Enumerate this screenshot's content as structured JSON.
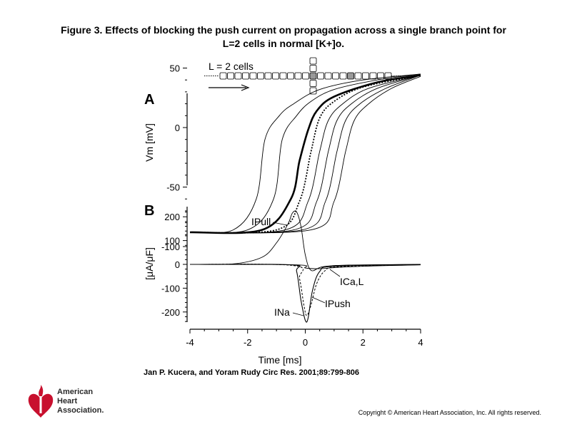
{
  "title": {
    "line1": "Figure 3. Effects of blocking the push current on propagation across a single branch point for",
    "line2": "L=2 cells in normal [K+]o."
  },
  "schematic": {
    "label": "L = 2 cells"
  },
  "panel_a": {
    "letter": "A",
    "ylabel": "Vm [mV]",
    "yticks": [
      "50",
      "0",
      "-50",
      "-100"
    ]
  },
  "panel_b": {
    "letter": "B",
    "ylabel": "[μA/μF]",
    "yticks": [
      "200",
      "100",
      "0",
      "-100",
      "-200"
    ],
    "xticks": [
      "-4",
      "-2",
      "0",
      "2",
      "4"
    ],
    "xlabel": "Time [ms]",
    "labels": {
      "ipull": "IPull",
      "ica": "ICa,L",
      "ipush": "IPush",
      "ina": "INa"
    }
  },
  "chart_data": [
    {
      "type": "line",
      "panel": "A",
      "ylabel": "Vm [mV]",
      "ylim": [
        -100,
        50
      ],
      "xlim": [
        -4,
        4
      ],
      "series": [
        {
          "values": [
            [
              -4,
              -88
            ],
            [
              -2.5,
              -86
            ],
            [
              -1.7,
              -60
            ],
            [
              -1.4,
              -10
            ],
            [
              -0.9,
              10
            ],
            [
              -0.4,
              20
            ],
            [
              0.5,
              32
            ],
            [
              2,
              40
            ],
            [
              4,
              45
            ]
          ]
        },
        {
          "values": [
            [
              -4,
              -88
            ],
            [
              -2,
              -86
            ],
            [
              -1.1,
              -60
            ],
            [
              -0.8,
              -10
            ],
            [
              -0.3,
              10
            ],
            [
              0.2,
              22
            ],
            [
              1,
              32
            ],
            [
              2.5,
              40
            ],
            [
              4,
              45
            ]
          ]
        },
        {
          "values": [
            [
              -4,
              -88
            ],
            [
              -1.5,
              -86
            ],
            [
              -0.5,
              -60
            ],
            [
              -0.2,
              -28
            ],
            [
              0.1,
              -2
            ],
            [
              0.4,
              14
            ],
            [
              1,
              26
            ],
            [
              2.5,
              38
            ],
            [
              4,
              44
            ]
          ]
        },
        {
          "values": [
            [
              -4,
              -88
            ],
            [
              -1,
              -86
            ],
            [
              -0.2,
              -62
            ],
            [
              0.2,
              -20
            ],
            [
              0.5,
              8
            ],
            [
              1,
              22
            ],
            [
              2,
              34
            ],
            [
              4,
              44
            ]
          ]
        },
        {
          "values": [
            [
              -4,
              -88
            ],
            [
              -0.7,
              -86
            ],
            [
              0.1,
              -62
            ],
            [
              0.5,
              -20
            ],
            [
              0.8,
              6
            ],
            [
              1.3,
              20
            ],
            [
              2.2,
              33
            ],
            [
              4,
              44
            ]
          ]
        },
        {
          "values": [
            [
              -4,
              -88
            ],
            [
              -0.4,
              -86
            ],
            [
              0.4,
              -62
            ],
            [
              0.8,
              -20
            ],
            [
              1.1,
              6
            ],
            [
              1.6,
              20
            ],
            [
              2.5,
              33
            ],
            [
              4,
              44
            ]
          ]
        },
        {
          "values": [
            [
              -4,
              -88
            ],
            [
              -0.1,
              -86
            ],
            [
              0.7,
              -62
            ],
            [
              1.1,
              -20
            ],
            [
              1.4,
              6
            ],
            [
              1.9,
              20
            ],
            [
              2.8,
              33
            ],
            [
              4,
              44
            ]
          ]
        },
        {
          "values": [
            [
              -4,
              -88
            ],
            [
              0.2,
              -86
            ],
            [
              1,
              -62
            ],
            [
              1.4,
              -20
            ],
            [
              1.7,
              6
            ],
            [
              2.2,
              20
            ],
            [
              3,
              33
            ],
            [
              4,
              43
            ]
          ]
        }
      ]
    },
    {
      "type": "line",
      "panel": "B",
      "xlabel": "Time [ms]",
      "ylabel": "[μA/μF]",
      "xlim": [
        -4,
        4
      ],
      "ylim": [
        -250,
        230
      ],
      "series": [
        {
          "name": "IPull",
          "values": [
            [
              -4,
              0
            ],
            [
              -2.5,
              2
            ],
            [
              -1.5,
              30
            ],
            [
              -1,
              90
            ],
            [
              -0.6,
              170
            ],
            [
              -0.45,
              215
            ],
            [
              -0.3,
              220
            ],
            [
              -0.15,
              160
            ],
            [
              0,
              40
            ],
            [
              0.2,
              -25
            ],
            [
              0.6,
              -10
            ],
            [
              1.5,
              -3
            ],
            [
              4,
              0
            ]
          ]
        },
        {
          "name": "INa",
          "values": [
            [
              -4,
              0
            ],
            [
              -0.5,
              -2
            ],
            [
              -0.3,
              -30
            ],
            [
              -0.15,
              -150
            ],
            [
              0,
              -235
            ],
            [
              0.1,
              -225
            ],
            [
              0.25,
              -110
            ],
            [
              0.5,
              -30
            ],
            [
              1,
              -8
            ],
            [
              4,
              0
            ]
          ]
        },
        {
          "name": "IPush",
          "values": [
            [
              -4,
              0
            ],
            [
              -0.4,
              -5
            ],
            [
              -0.2,
              -60
            ],
            [
              -0.05,
              -170
            ],
            [
              0.05,
              -215
            ],
            [
              0.2,
              -170
            ],
            [
              0.4,
              -80
            ],
            [
              0.7,
              -25
            ],
            [
              1.2,
              -10
            ],
            [
              4,
              0
            ]
          ]
        },
        {
          "name": "ICa,L",
          "values": [
            [
              -4,
              0
            ],
            [
              -0.3,
              -2
            ],
            [
              0,
              -15
            ],
            [
              0.5,
              -18
            ],
            [
              1.2,
              -12
            ],
            [
              2.5,
              -6
            ],
            [
              4,
              -2
            ]
          ]
        }
      ]
    }
  ],
  "citation": "Jan P. Kucera, and Yoram Rudy Circ Res. 2001;89:799-806",
  "logo": {
    "line1": "American",
    "line2": "Heart",
    "line3": "Association."
  },
  "copyright": "Copyright © American Heart Association, Inc. All rights reserved.",
  "colors": {
    "text": "#000000",
    "logo_red": "#c8102e",
    "cell_shaded": "#999999"
  },
  "icons": {
    "logo": "heart-torch-logo-icon"
  }
}
